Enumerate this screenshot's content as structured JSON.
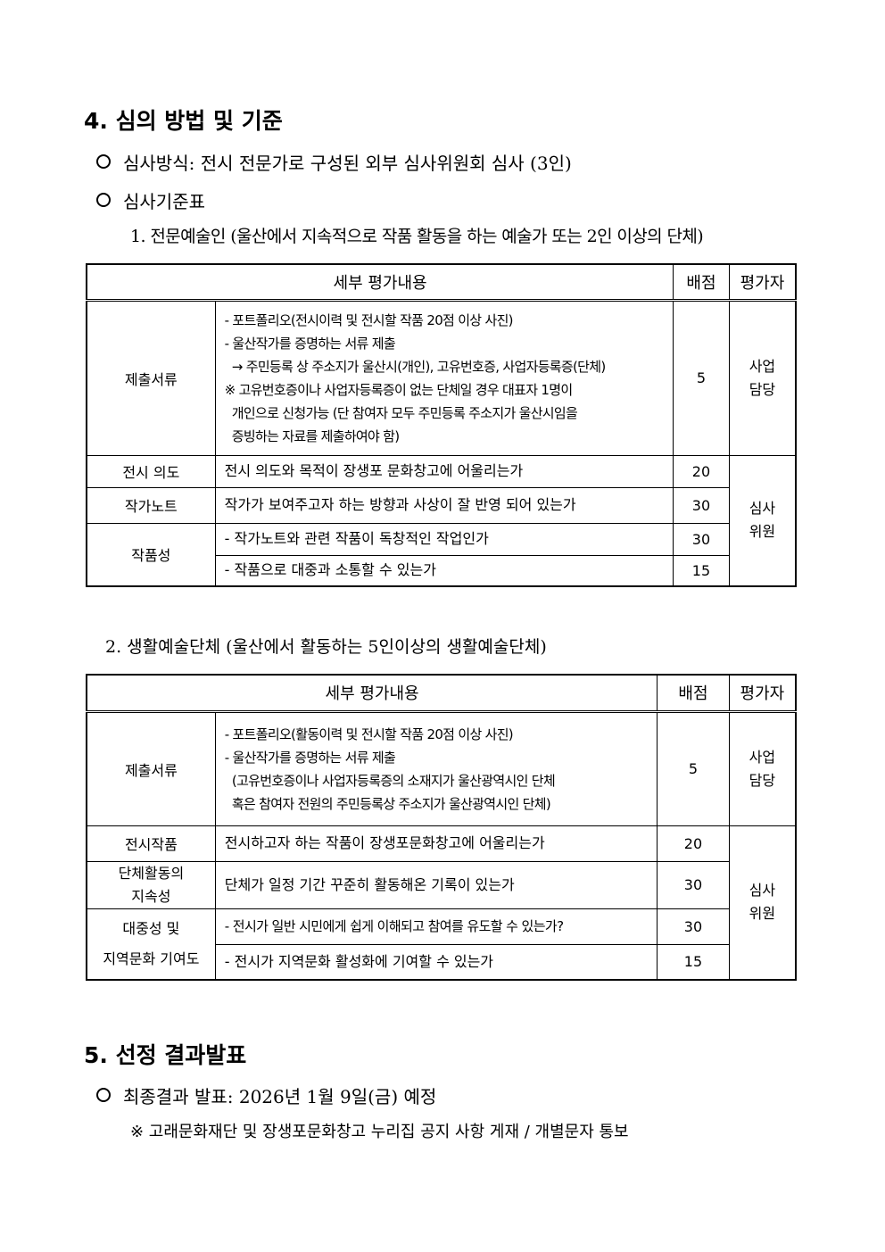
{
  "s4": {
    "title": "4. 심의 방법 및 기준",
    "method": "심사방식: 전시 전문가로 구성된 외부 심사위원회 심사 (3인)",
    "criteria": "심사기준표",
    "sub1": "1. 전문예술인 (울산에서 지속적으로 작품 활동을 하는 예술가 또는 2인 이상의 단체)",
    "sub2": "2. 생활예술단체 (울산에서 활동하는 5인이상의 생활예술단체)"
  },
  "t1": {
    "h": [
      "세부 평가내용",
      "배점",
      "평가자"
    ],
    "r1": {
      "cat": "제출서류",
      "lines": [
        "- 포트폴리오(전시이력 및 전시할 작품 20점 이상 사진)",
        "- 울산작가를 증명하는 서류 제출",
        "  → 주민등록 상 주소지가 울산시(개인), 고유번호증, 사업자등록증(단체)",
        "※ 고유번호증이나 사업자등록증이 없는 단체일 경우 대표자 1명이",
        "  개인으로 신청가능 (단 참여자 모두 주민등록 주소지가 울산시임을",
        "  증빙하는 자료를 제출하여야 함)"
      ],
      "score": "5",
      "eval": "사업\n담당"
    },
    "r2": {
      "cat": "전시 의도",
      "text": "전시 의도와 목적이 장생포 문화창고에 어울리는가",
      "score": "20",
      "eval": "심사\n위원"
    },
    "r3": {
      "cat": "작가노트",
      "text": "작가가 보여주고자 하는 방향과 사상이 잘 반영 되어 있는가",
      "score": "30"
    },
    "r4": {
      "cat": "작품성",
      "text": "- 작가노트와 관련 작품이 독창적인 작업인가",
      "score": "30"
    },
    "r5": {
      "text": "- 작품으로 대중과 소통할 수 있는가",
      "score": "15"
    }
  },
  "t2": {
    "h": [
      "세부 평가내용",
      "배점",
      "평가자"
    ],
    "r1": {
      "cat": "제출서류",
      "lines": [
        "- 포트폴리오(활동이력 및 전시할 작품 20점 이상 사진)",
        "- 울산작가를 증명하는 서류 제출",
        "  (고유번호증이나 사업자등록증의 소재지가 울산광역시인 단체",
        "  혹은 참여자 전원의 주민등록상 주소지가 울산광역시인 단체)"
      ],
      "score": "5",
      "eval": "사업\n담당"
    },
    "r2": {
      "cat": "전시작품",
      "text": "전시하고자 하는 작품이 장생포문화창고에 어울리는가",
      "score": "20",
      "eval": "심사\n위원"
    },
    "r3": {
      "cat": "단체활동의\n지속성",
      "text": "단체가 일정 기간 꾸준히 활동해온 기록이 있는가",
      "score": "30"
    },
    "r4": {
      "cat": "대중성 및\n지역문화 기여도",
      "text": "- 전시가 일반 시민에게 쉽게 이해되고 참여를 유도할 수 있는가?",
      "score": "30"
    },
    "r5": {
      "text": "- 전시가 지역문화 활성화에 기여할 수 있는가",
      "score": "15"
    }
  },
  "s5": {
    "title": "5. 선정 결과발표",
    "result": "최종결과 발표: 2026년 1월 9일(금) 예정",
    "note": "※ 고래문화재단 및 장생포문화창고 누리집 공지 사항 게재 / 개별문자 통보"
  }
}
